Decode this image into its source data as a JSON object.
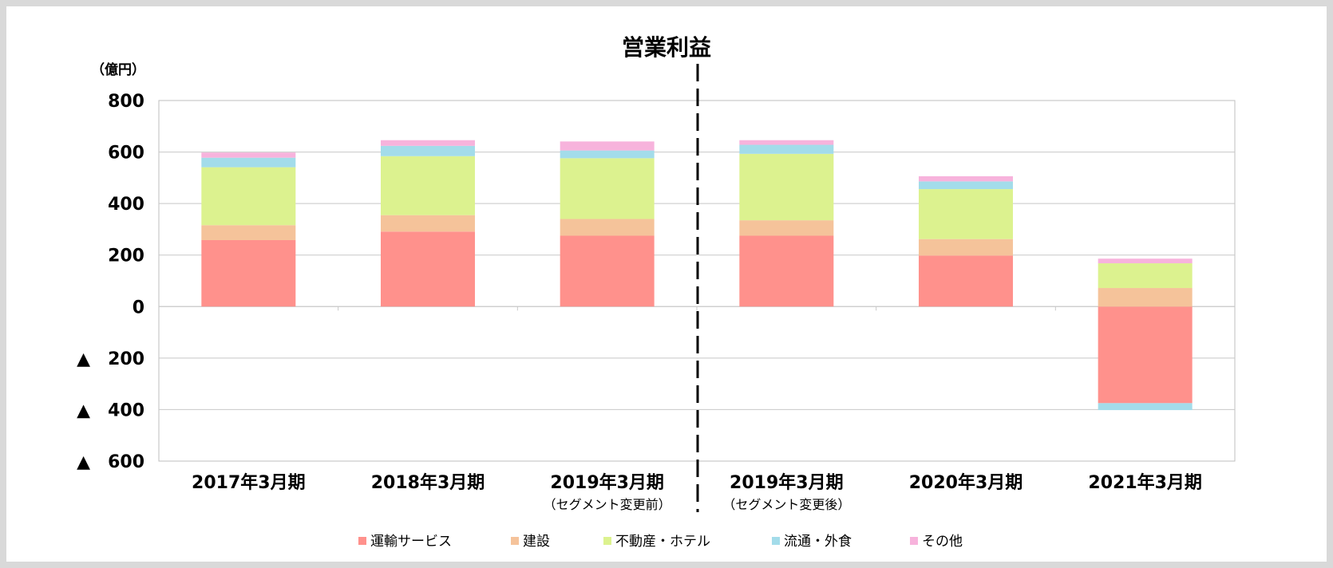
{
  "chart_data": {
    "type": "bar",
    "stacked": true,
    "title": "営業利益",
    "unit_label": "（億円）",
    "ylim": [
      -600,
      800
    ],
    "yticks": [
      800,
      600,
      400,
      200,
      0,
      -200,
      -400,
      -600
    ],
    "ytick_labels": [
      "800",
      "600",
      "400",
      "200",
      "0",
      "▲　200",
      "▲　400",
      "▲　600"
    ],
    "grid": true,
    "legend_position": "bottom",
    "divider_after_category_index": 2,
    "categories": [
      {
        "label": "2017年3月期",
        "sublabel": ""
      },
      {
        "label": "2018年3月期",
        "sublabel": ""
      },
      {
        "label": "2019年3月期",
        "sublabel": "（セグメント変更前）"
      },
      {
        "label": "2019年3月期",
        "sublabel": "（セグメント変更後）"
      },
      {
        "label": "2020年3月期",
        "sublabel": ""
      },
      {
        "label": "2021年3月期",
        "sublabel": ""
      }
    ],
    "series": [
      {
        "name": "運輸サービス",
        "color": "#ff918c",
        "values": [
          258,
          291,
          275,
          275,
          198,
          -375
        ]
      },
      {
        "name": "建設",
        "color": "#f5c39a",
        "values": [
          58,
          64,
          65,
          60,
          64,
          72
        ]
      },
      {
        "name": "不動産・ホテル",
        "color": "#dcf28f",
        "values": [
          225,
          229,
          236,
          258,
          194,
          96
        ]
      },
      {
        "name": "流通・外食",
        "color": "#a3dcea",
        "values": [
          37,
          40,
          30,
          35,
          30,
          -27
        ]
      },
      {
        "name": "その他",
        "color": "#f7b3dc",
        "values": [
          20,
          22,
          35,
          18,
          20,
          18
        ]
      }
    ]
  }
}
